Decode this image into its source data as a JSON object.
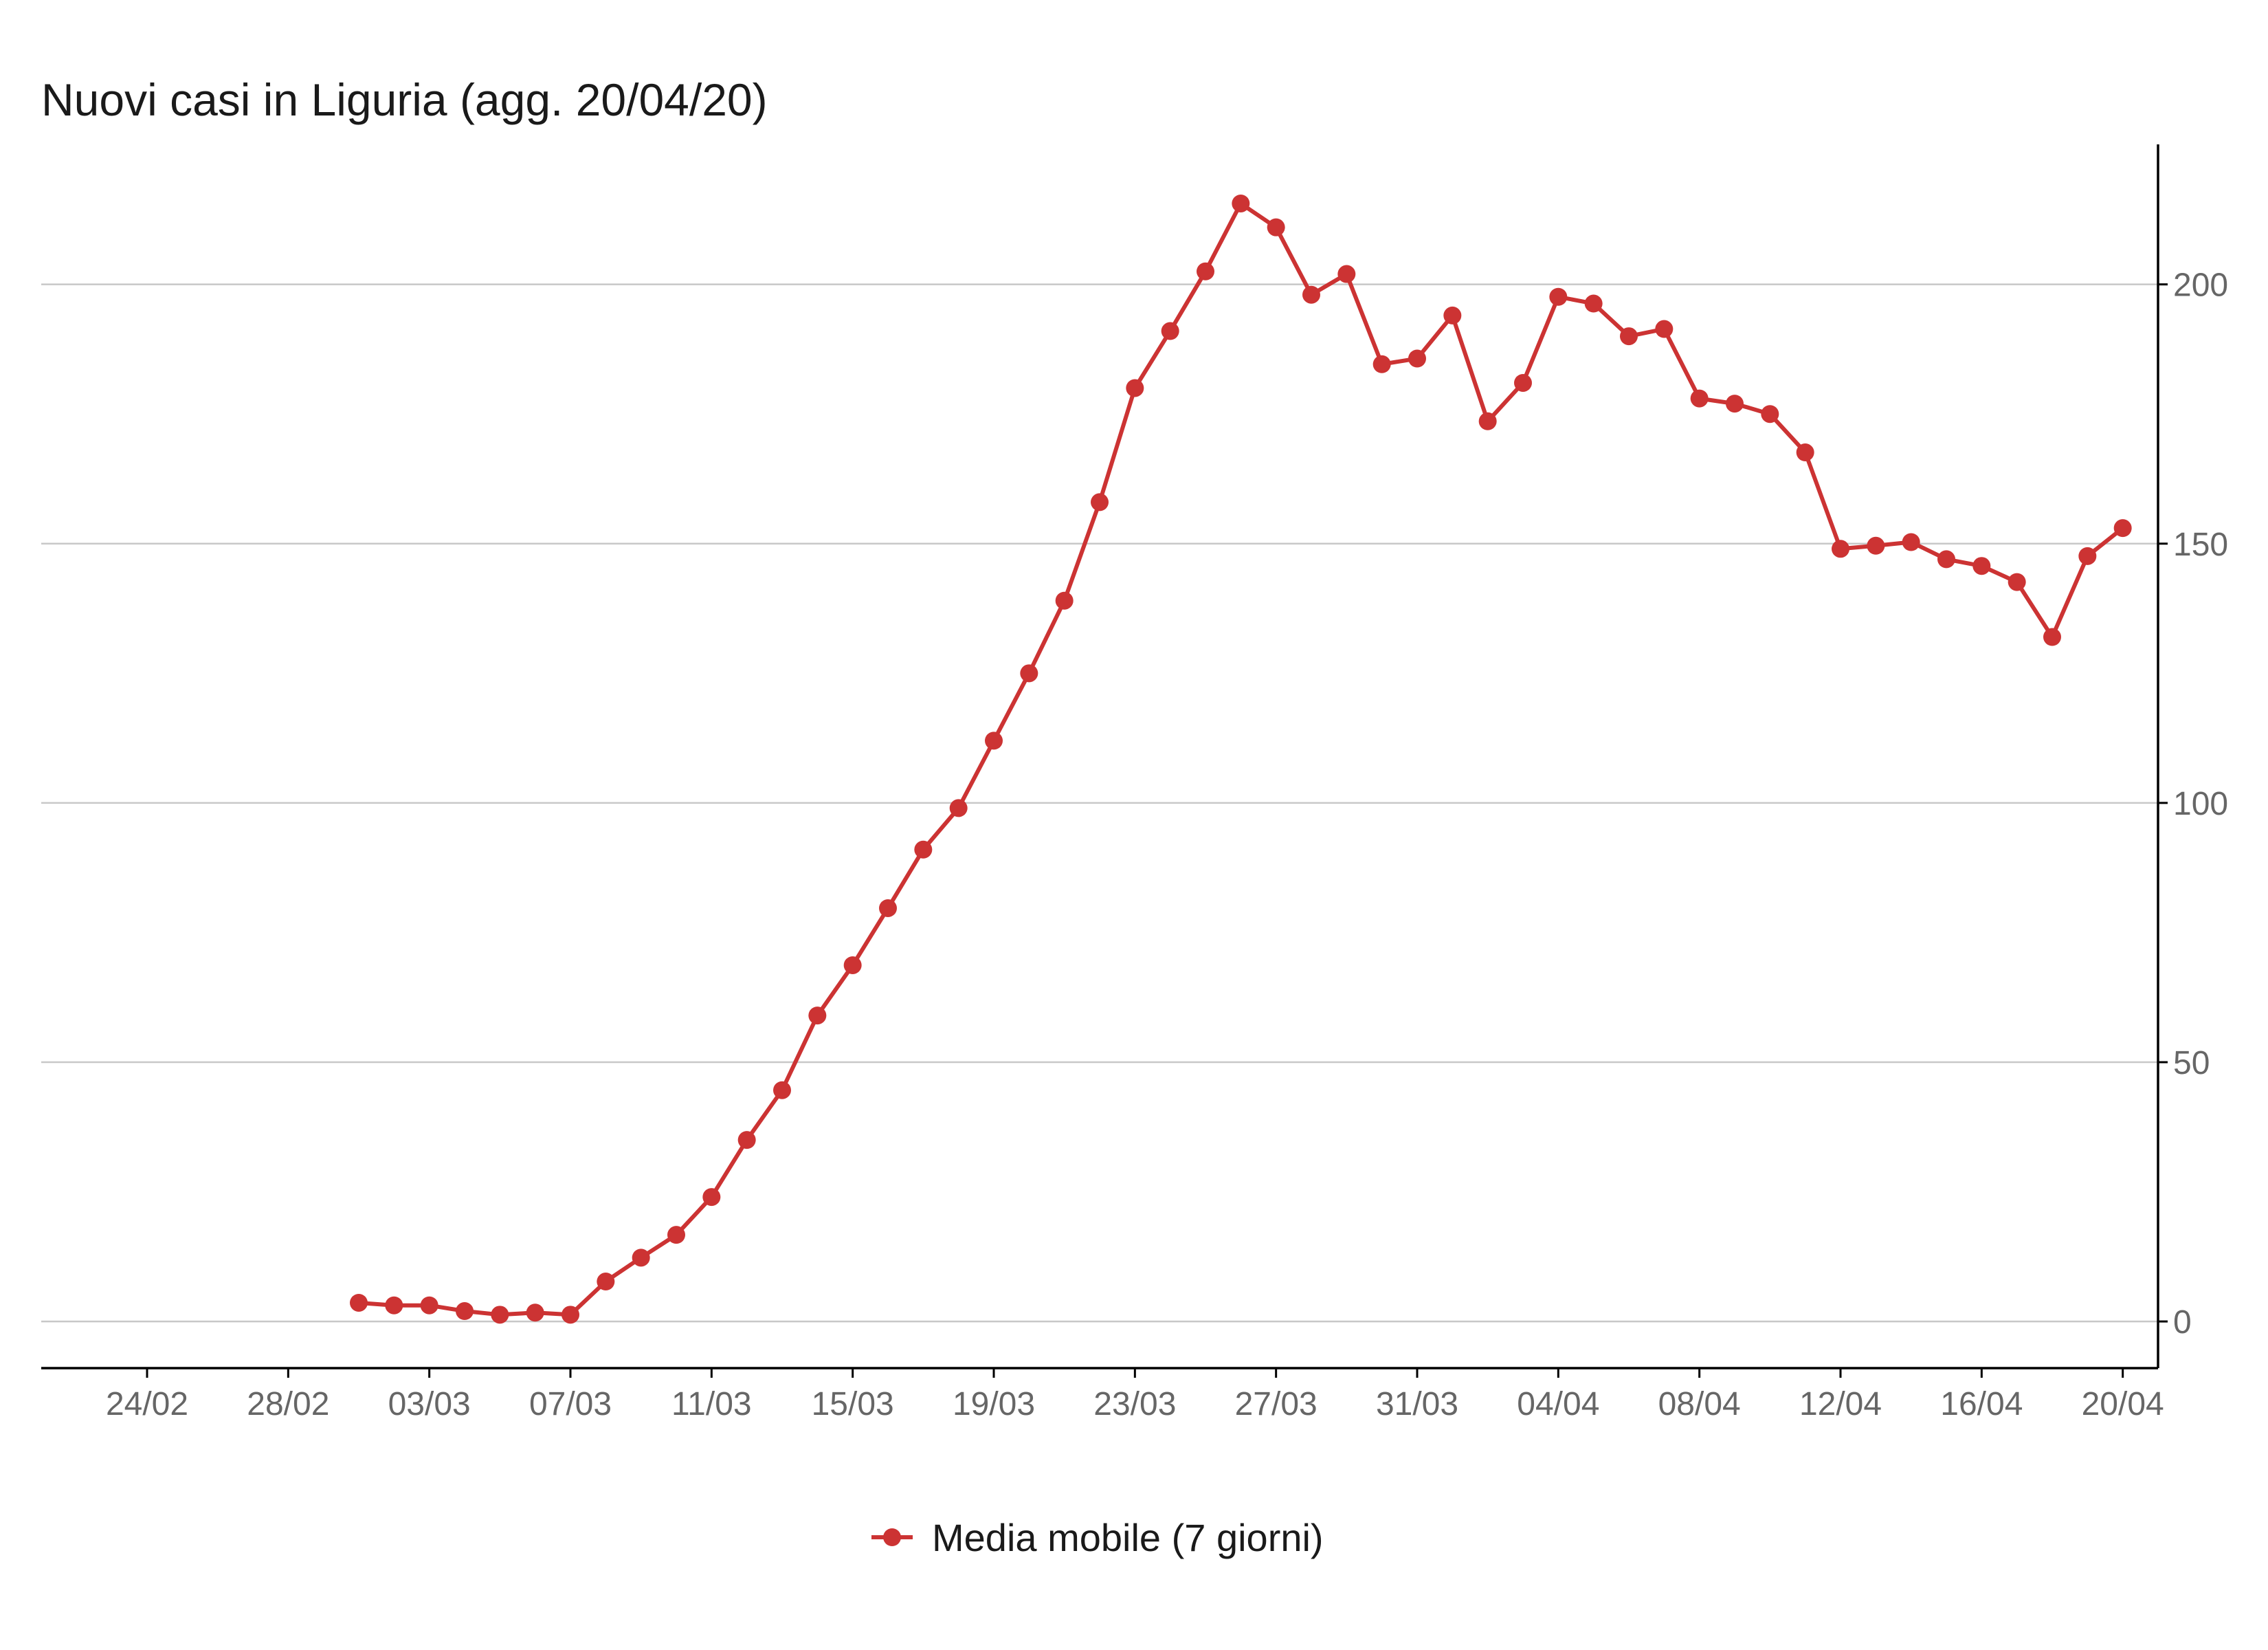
{
  "chart_data": {
    "type": "line",
    "title": "Nuovi casi in Liguria (agg. 20/04/20)",
    "xlabel": "",
    "ylabel": "",
    "y_axis_side": "right",
    "ylim": [
      -9,
      227
    ],
    "y_ticks": [
      0,
      50,
      100,
      150,
      200
    ],
    "x_ticks": [
      "24/02",
      "28/02",
      "03/03",
      "07/03",
      "11/03",
      "15/03",
      "19/03",
      "23/03",
      "27/03",
      "31/03",
      "04/04",
      "08/04",
      "12/04",
      "16/04",
      "20/04"
    ],
    "x_range": [
      "21/02",
      "21/04"
    ],
    "grid": "horizontal",
    "legend_position": "bottom",
    "color": "#cc3333",
    "x": [
      "01/03",
      "02/03",
      "03/03",
      "04/03",
      "05/03",
      "06/03",
      "07/03",
      "08/03",
      "09/03",
      "10/03",
      "11/03",
      "12/03",
      "13/03",
      "14/03",
      "15/03",
      "16/03",
      "17/03",
      "18/03",
      "19/03",
      "20/03",
      "21/03",
      "22/03",
      "23/03",
      "24/03",
      "25/03",
      "26/03",
      "27/03",
      "28/03",
      "29/03",
      "30/03",
      "31/03",
      "01/04",
      "02/04",
      "03/04",
      "04/04",
      "05/04",
      "06/04",
      "07/04",
      "08/04",
      "09/04",
      "10/04",
      "11/04",
      "12/04",
      "13/04",
      "14/04",
      "15/04",
      "16/04",
      "17/04",
      "18/04",
      "19/04",
      "20/04"
    ],
    "series": [
      {
        "name": "Media mobile (7 giorni)",
        "values": [
          3.6,
          3.1,
          3.1,
          2.0,
          1.3,
          1.7,
          1.3,
          7.7,
          12.3,
          16.7,
          24.0,
          35.0,
          44.6,
          59.0,
          68.7,
          79.7,
          91.0,
          99.0,
          112.0,
          125.0,
          139.0,
          158.0,
          180.0,
          191.0,
          202.5,
          215.6,
          211.0,
          198.0,
          202.0,
          184.6,
          185.7,
          194.0,
          173.6,
          181.0,
          197.6,
          196.3,
          190.0,
          191.4,
          178.0,
          177.0,
          175.0,
          167.6,
          149.0,
          149.6,
          150.3,
          147.0,
          145.7,
          142.6,
          132.0,
          147.6,
          153.0
        ]
      }
    ]
  }
}
